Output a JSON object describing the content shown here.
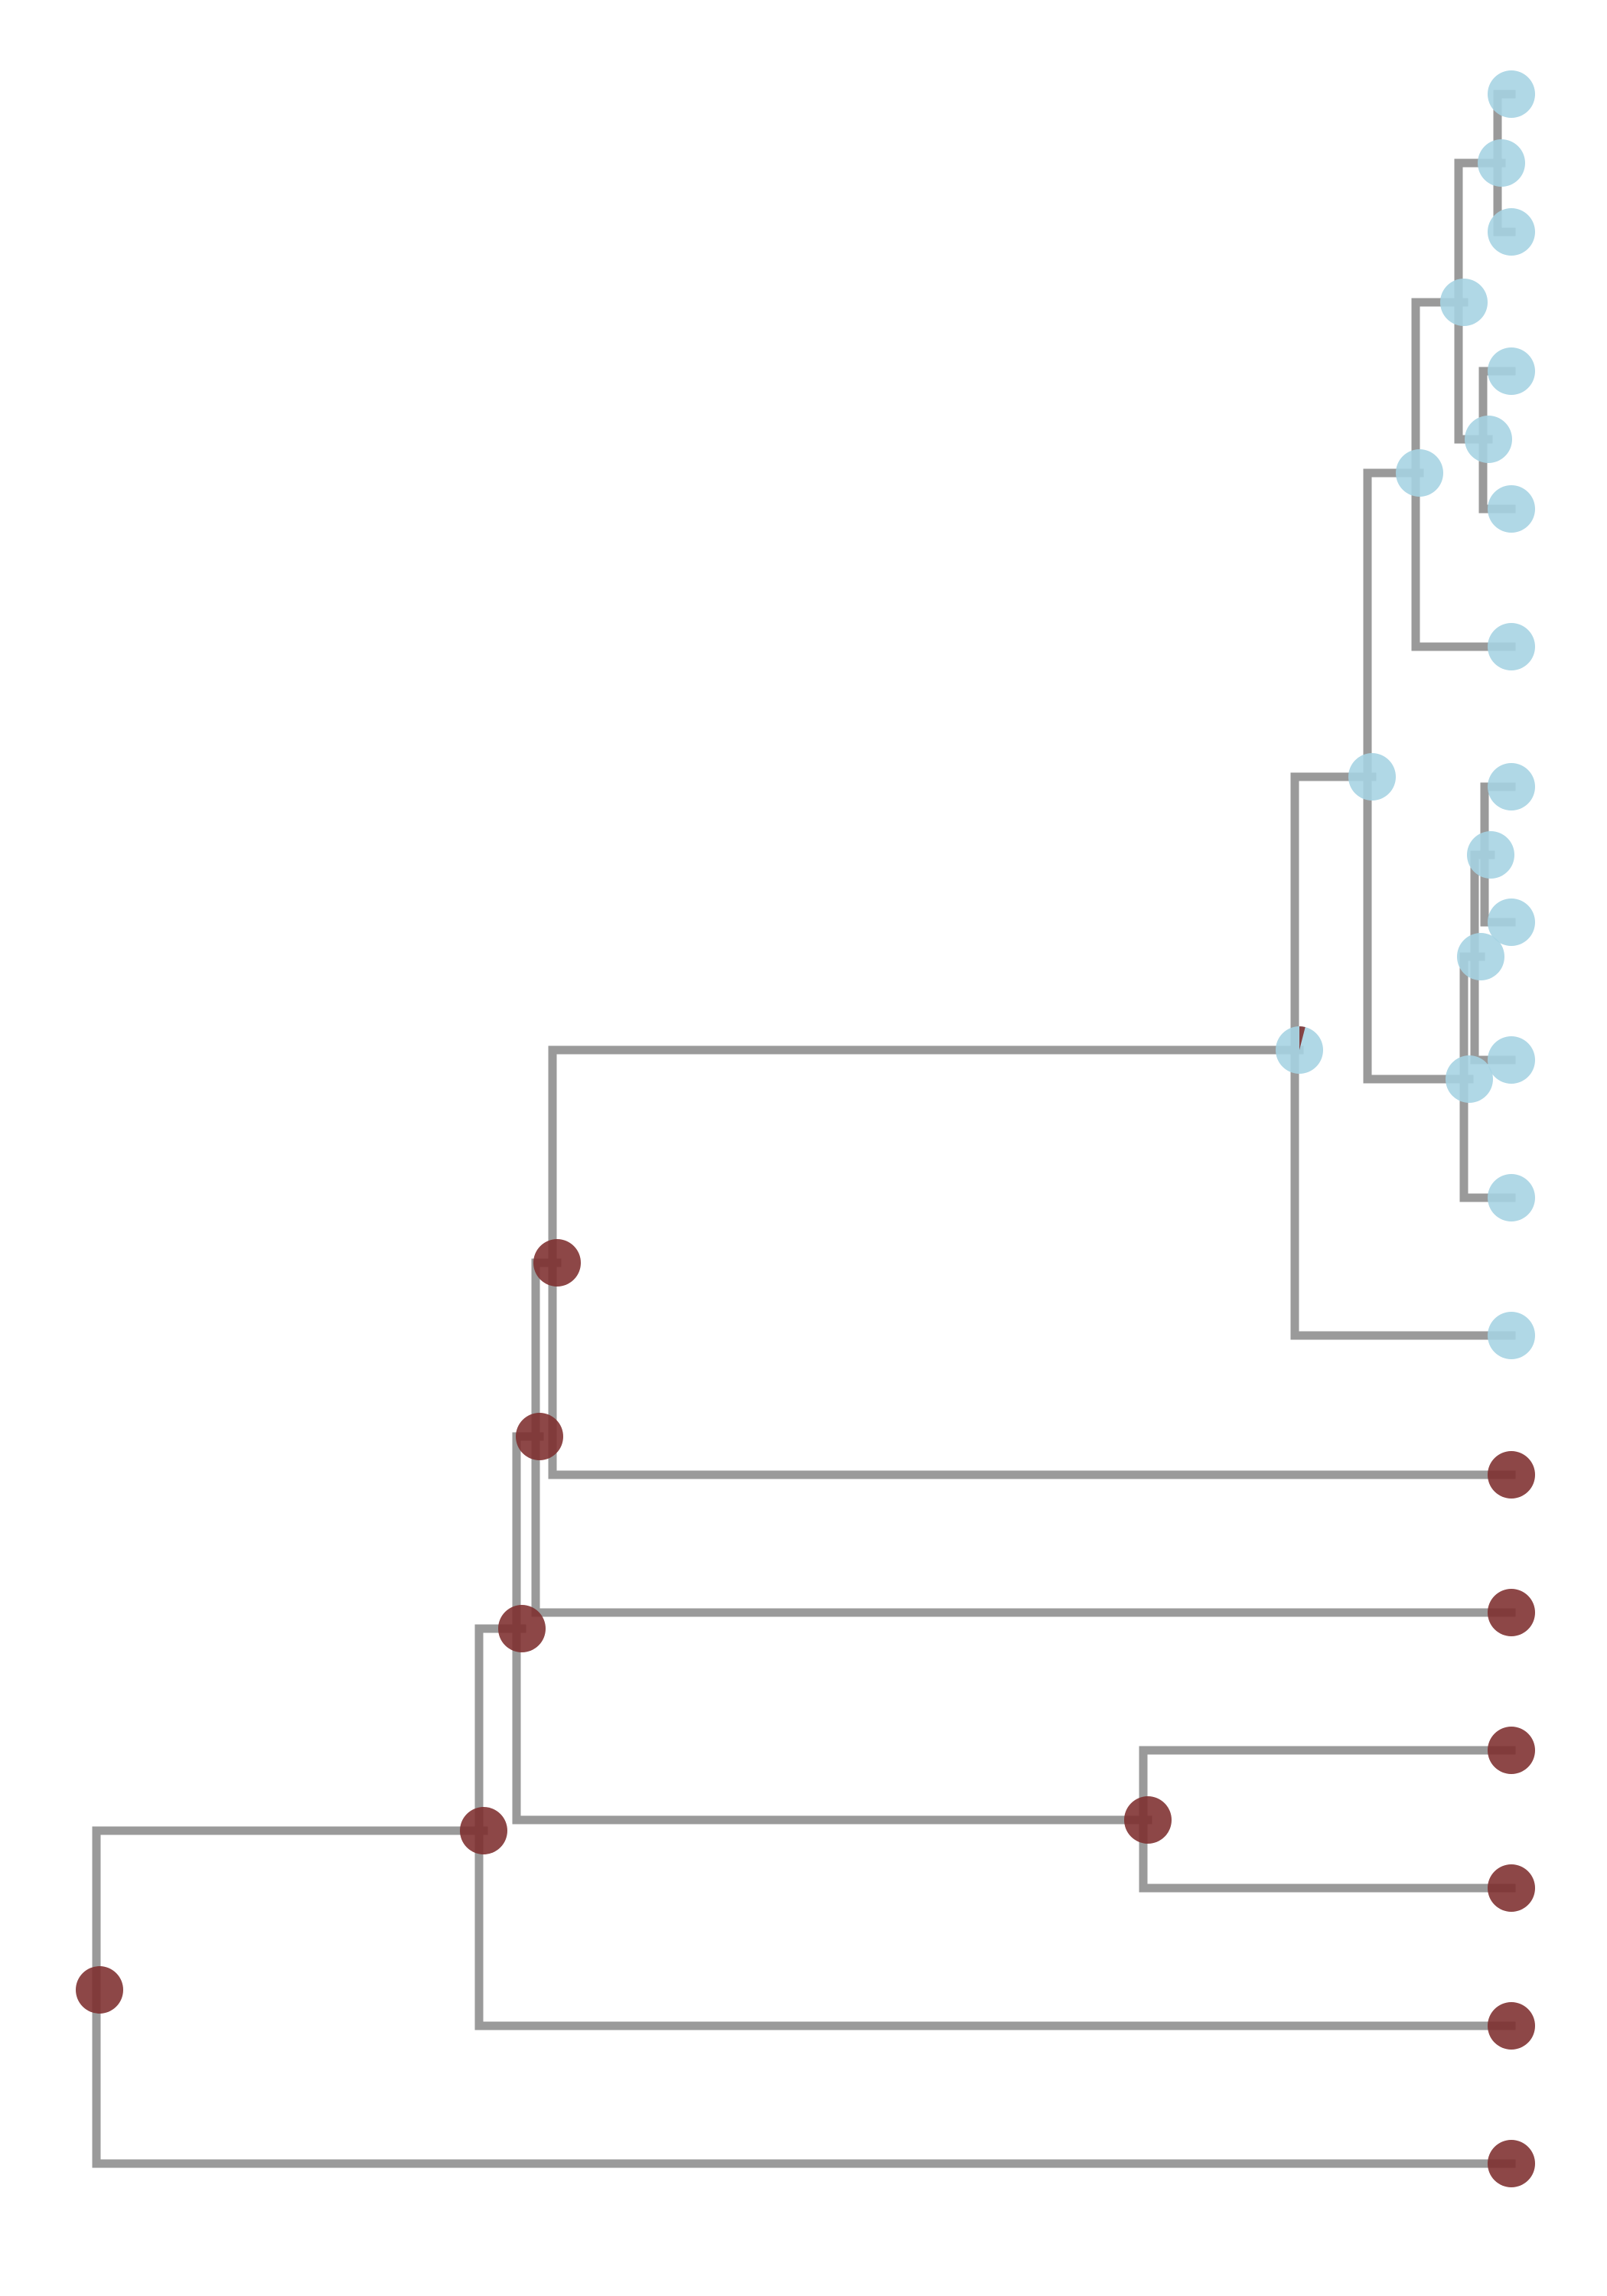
{
  "figure": {
    "type": "phylogenetic-tree",
    "orientation": "rooted-left",
    "ancestral_state_reconstruction": true
  },
  "colors": {
    "branch": "#9a9a9a",
    "state_a": "#7d2e2e",
    "state_b": "#a5d3e3"
  },
  "tree": {
    "nodes": [
      {
        "id": "root",
        "kind": "internal",
        "parent": null,
        "state": "state_a"
      },
      {
        "id": "n1",
        "kind": "internal",
        "parent": "root",
        "state": "state_a"
      },
      {
        "id": "n2",
        "kind": "internal",
        "parent": "n1",
        "state": "state_a"
      },
      {
        "id": "n3",
        "kind": "internal",
        "parent": "n2",
        "state": "state_a"
      },
      {
        "id": "n4",
        "kind": "internal",
        "parent": "n3",
        "state": "state_a"
      },
      {
        "id": "n5",
        "kind": "internal",
        "parent": "n4",
        "state": "state_b",
        "state_fraction_a": 0.04
      },
      {
        "id": "n6",
        "kind": "internal",
        "parent": "n5",
        "state": "state_b"
      },
      {
        "id": "n7",
        "kind": "internal",
        "parent": "n6",
        "state": "state_b"
      },
      {
        "id": "n8",
        "kind": "internal",
        "parent": "n7",
        "state": "state_b"
      },
      {
        "id": "n9",
        "kind": "internal",
        "parent": "n8",
        "state": "state_b"
      },
      {
        "id": "n10",
        "kind": "internal",
        "parent": "n8",
        "state": "state_b"
      },
      {
        "id": "n11",
        "kind": "internal",
        "parent": "n6",
        "state": "state_b"
      },
      {
        "id": "n12",
        "kind": "internal",
        "parent": "n11",
        "state": "state_b"
      },
      {
        "id": "n13",
        "kind": "internal",
        "parent": "n12",
        "state": "state_b"
      },
      {
        "id": "n14",
        "kind": "internal",
        "parent": "n2",
        "state": "state_a"
      },
      {
        "id": "t1",
        "kind": "tip",
        "parent": "n9",
        "state": "state_b"
      },
      {
        "id": "t2",
        "kind": "tip",
        "parent": "n9",
        "state": "state_b"
      },
      {
        "id": "t3",
        "kind": "tip",
        "parent": "n10",
        "state": "state_b"
      },
      {
        "id": "t4",
        "kind": "tip",
        "parent": "n10",
        "state": "state_b"
      },
      {
        "id": "t5",
        "kind": "tip",
        "parent": "n7",
        "state": "state_b"
      },
      {
        "id": "t6",
        "kind": "tip",
        "parent": "n13",
        "state": "state_b"
      },
      {
        "id": "t7",
        "kind": "tip",
        "parent": "n13",
        "state": "state_b"
      },
      {
        "id": "t8",
        "kind": "tip",
        "parent": "n12",
        "state": "state_b"
      },
      {
        "id": "t9",
        "kind": "tip",
        "parent": "n11",
        "state": "state_b"
      },
      {
        "id": "t10",
        "kind": "tip",
        "parent": "n5",
        "state": "state_b"
      },
      {
        "id": "t11",
        "kind": "tip",
        "parent": "n4",
        "state": "state_a"
      },
      {
        "id": "t12",
        "kind": "tip",
        "parent": "n3",
        "state": "state_a"
      },
      {
        "id": "t13",
        "kind": "tip",
        "parent": "n14",
        "state": "state_a"
      },
      {
        "id": "t14",
        "kind": "tip",
        "parent": "n14",
        "state": "state_a"
      },
      {
        "id": "t15",
        "kind": "tip",
        "parent": "n1",
        "state": "state_a"
      },
      {
        "id": "t16",
        "kind": "tip",
        "parent": "root",
        "state": "state_a"
      }
    ]
  }
}
